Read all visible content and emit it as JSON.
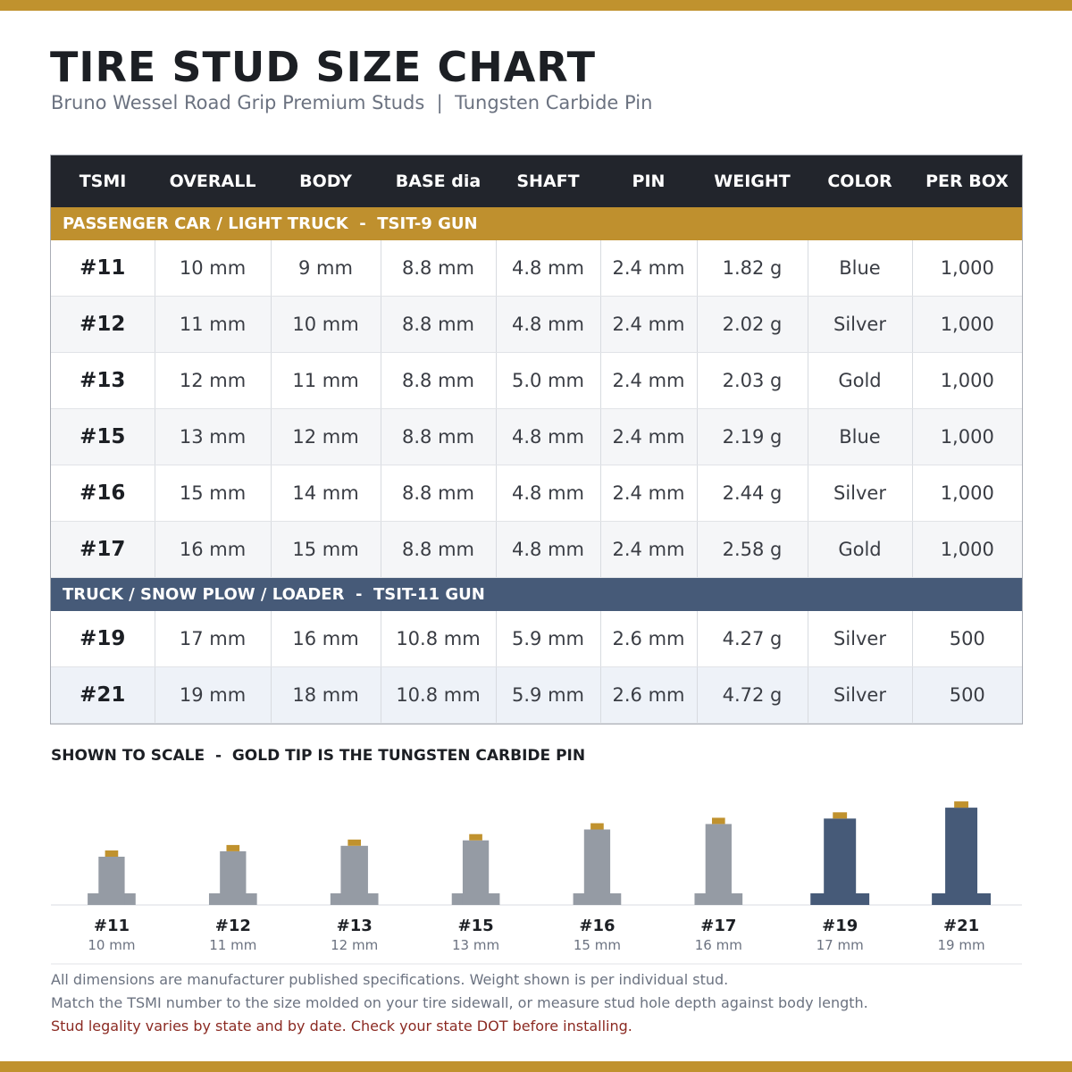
{
  "header": {
    "title": "TIRE STUD SIZE CHART",
    "subtitle": "Bruno Wessel Road Grip Premium Studs  |  Tungsten Carbide Pin"
  },
  "table": {
    "columns": [
      "TSMI",
      "OVERALL",
      "BODY",
      "BASE dia",
      "SHAFT",
      "PIN",
      "WEIGHT",
      "COLOR",
      "PER BOX"
    ],
    "groups": [
      {
        "label": "PASSENGER CAR / LIGHT TRUCK  -  TSIT-9 GUN",
        "rows": [
          [
            "#11",
            "10 mm",
            "9 mm",
            "8.8 mm",
            "4.8 mm",
            "2.4 mm",
            "1.82 g",
            "Blue",
            "1,000"
          ],
          [
            "#12",
            "11 mm",
            "10 mm",
            "8.8 mm",
            "4.8 mm",
            "2.4 mm",
            "2.02 g",
            "Silver",
            "1,000"
          ],
          [
            "#13",
            "12 mm",
            "11 mm",
            "8.8 mm",
            "5.0 mm",
            "2.4 mm",
            "2.03 g",
            "Gold",
            "1,000"
          ],
          [
            "#15",
            "13 mm",
            "12 mm",
            "8.8 mm",
            "4.8 mm",
            "2.4 mm",
            "2.19 g",
            "Blue",
            "1,000"
          ],
          [
            "#16",
            "15 mm",
            "14 mm",
            "8.8 mm",
            "4.8 mm",
            "2.4 mm",
            "2.44 g",
            "Silver",
            "1,000"
          ],
          [
            "#17",
            "16 mm",
            "15 mm",
            "8.8 mm",
            "4.8 mm",
            "2.4 mm",
            "2.58 g",
            "Gold",
            "1,000"
          ]
        ]
      },
      {
        "label": "TRUCK / SNOW PLOW / LOADER  -  TSIT-11 GUN",
        "rows": [
          [
            "#19",
            "17 mm",
            "16 mm",
            "10.8 mm",
            "5.9 mm",
            "2.6 mm",
            "4.27 g",
            "Silver",
            "500"
          ],
          [
            "#21",
            "19 mm",
            "18 mm",
            "10.8 mm",
            "5.9 mm",
            "2.6 mm",
            "4.72 g",
            "Silver",
            "500"
          ]
        ]
      }
    ]
  },
  "scale": {
    "title": "SHOWN TO SCALE  -  GOLD TIP IS THE TUNGSTEN CARBIDE PIN"
  },
  "notes": [
    "All dimensions are manufacturer published specifications. Weight shown is per individual stud.",
    "Match the TSMI number to the size molded on your tire sidewall, or measure stud hole depth against body length.",
    "Stud legality varies by state and by date. Check your state DOT before installing."
  ]
}
